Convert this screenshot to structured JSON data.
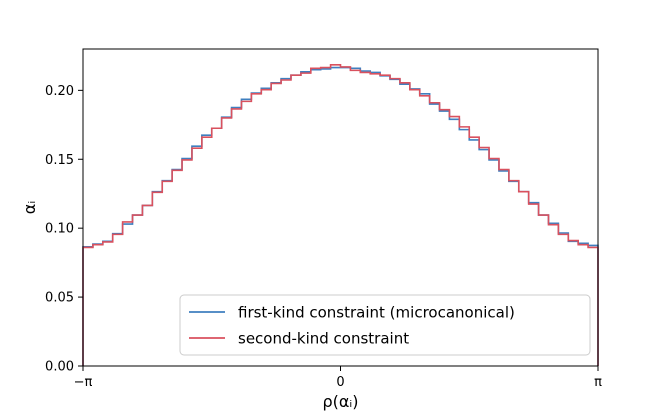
{
  "chart_data": {
    "type": "line",
    "step": true,
    "xlabel": "ρ(αᵢ)",
    "ylabel": "αᵢ",
    "xlim": [
      -3.14159,
      3.14159
    ],
    "ylim": [
      0,
      0.23
    ],
    "xticks": [
      {
        "value": -3.14159,
        "label": "−π"
      },
      {
        "value": 0,
        "label": "0"
      },
      {
        "value": 3.14159,
        "label": "π"
      }
    ],
    "yticks": [
      {
        "value": 0.0,
        "label": "0.00"
      },
      {
        "value": 0.05,
        "label": "0.05"
      },
      {
        "value": 0.1,
        "label": "0.10"
      },
      {
        "value": 0.15,
        "label": "0.15"
      },
      {
        "value": 0.2,
        "label": "0.20"
      }
    ],
    "grid": false,
    "legend": {
      "position": "lower-right"
    },
    "bins": 50,
    "series": [
      {
        "name": "first-kind constraint (microcanonical)",
        "color": "#3f7fbf",
        "values": [
          0.0865,
          0.0885,
          0.0905,
          0.096,
          0.103,
          0.1095,
          0.1165,
          0.1265,
          0.1345,
          0.1425,
          0.1505,
          0.1595,
          0.1675,
          0.1725,
          0.1805,
          0.1875,
          0.1935,
          0.198,
          0.2015,
          0.2055,
          0.2085,
          0.211,
          0.2135,
          0.215,
          0.2155,
          0.2165,
          0.2165,
          0.216,
          0.214,
          0.213,
          0.2105,
          0.208,
          0.2045,
          0.201,
          0.1975,
          0.19,
          0.185,
          0.179,
          0.1715,
          0.164,
          0.157,
          0.1495,
          0.1415,
          0.134,
          0.1265,
          0.1185,
          0.1095,
          0.1035,
          0.0965,
          0.0905,
          0.089,
          0.0875
        ]
      },
      {
        "name": "second-kind constraint",
        "color": "#d9515e",
        "values": [
          0.086,
          0.088,
          0.09,
          0.0955,
          0.1045,
          0.1095,
          0.1165,
          0.126,
          0.134,
          0.142,
          0.1495,
          0.158,
          0.166,
          0.1725,
          0.18,
          0.1865,
          0.192,
          0.1975,
          0.2005,
          0.205,
          0.2075,
          0.211,
          0.2125,
          0.216,
          0.2165,
          0.2185,
          0.217,
          0.2145,
          0.213,
          0.212,
          0.211,
          0.2085,
          0.2055,
          0.2005,
          0.196,
          0.191,
          0.186,
          0.181,
          0.1735,
          0.166,
          0.1585,
          0.1505,
          0.1425,
          0.1345,
          0.1265,
          0.1175,
          0.1095,
          0.1025,
          0.0955,
          0.091,
          0.088,
          0.086
        ]
      }
    ]
  }
}
